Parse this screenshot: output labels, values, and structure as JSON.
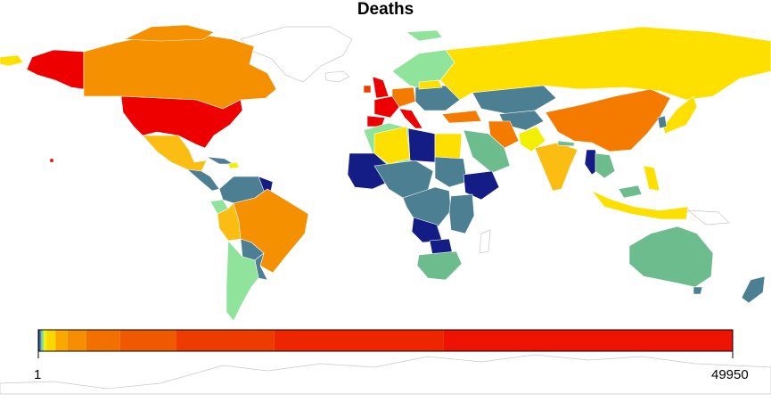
{
  "title": "Deaths",
  "legend": {
    "min_label": "1",
    "max_label": "49950",
    "min": 1,
    "max": 49950
  },
  "color_scale": [
    {
      "stop": 0.0,
      "color": "#1f2a8c"
    },
    {
      "stop": 0.002,
      "color": "#4f8a96"
    },
    {
      "stop": 0.004,
      "color": "#6cbf8e"
    },
    {
      "stop": 0.006,
      "color": "#8fe39a"
    },
    {
      "stop": 0.008,
      "color": "#f4f000"
    },
    {
      "stop": 0.012,
      "color": "#fbd700"
    },
    {
      "stop": 0.025,
      "color": "#f9a800"
    },
    {
      "stop": 0.042,
      "color": "#f58e00"
    },
    {
      "stop": 0.069,
      "color": "#f27000"
    },
    {
      "stop": 0.118,
      "color": "#ef5a00"
    },
    {
      "stop": 0.198,
      "color": "#ee3b00"
    },
    {
      "stop": 0.34,
      "color": "#ee2600"
    },
    {
      "stop": 0.584,
      "color": "#ee1200"
    },
    {
      "stop": 1.0,
      "color": "#ee0000"
    }
  ],
  "color_classes": {
    "dark_blue": "#141c86",
    "steel_blue": "#4d7f93",
    "sea_green": "#6cbc8e",
    "light_green": "#8fe39a",
    "bright_yellow": "#f2f000",
    "yellow": "#fde000",
    "light_orange": "#fbbd11",
    "orange": "#f59000",
    "dark_orange": "#f47a00",
    "red_orange": "#ee3d00",
    "red": "#ee0000"
  }
}
